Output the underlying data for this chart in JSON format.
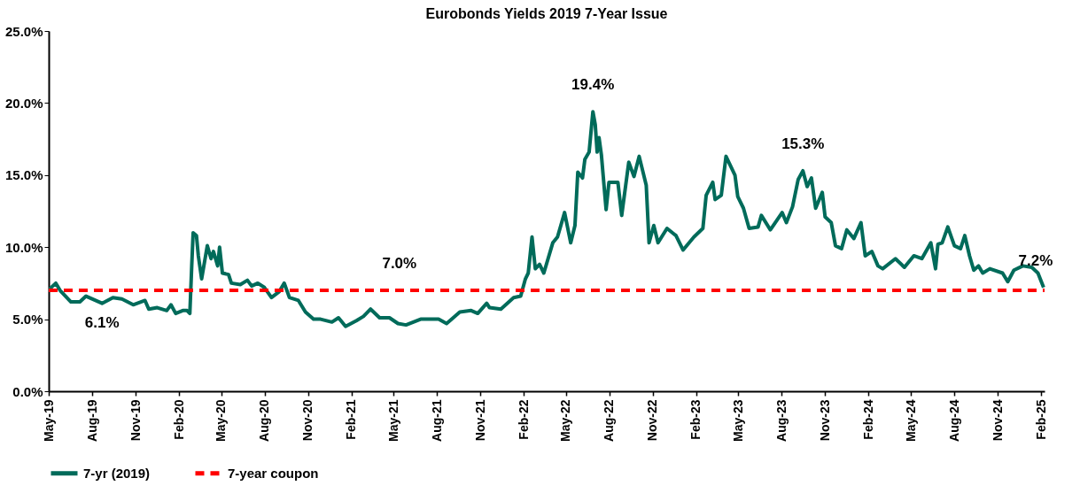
{
  "chart_data": {
    "type": "line",
    "title": "Eurobonds Yields 2019 7-Year Issue",
    "xlim": [
      "2019-05-01",
      "2025-02-08"
    ],
    "xticks": [
      {
        "value": "2019-05-01",
        "label": "May-19"
      },
      {
        "value": "2019-08-01",
        "label": "Aug-19"
      },
      {
        "value": "2019-11-01",
        "label": "Nov-19"
      },
      {
        "value": "2020-02-01",
        "label": "Feb-20"
      },
      {
        "value": "2020-05-01",
        "label": "May-20"
      },
      {
        "value": "2020-08-01",
        "label": "Aug-20"
      },
      {
        "value": "2020-11-01",
        "label": "Nov-20"
      },
      {
        "value": "2021-02-01",
        "label": "Feb-21"
      },
      {
        "value": "2021-05-01",
        "label": "May-21"
      },
      {
        "value": "2021-08-01",
        "label": "Aug-21"
      },
      {
        "value": "2021-11-01",
        "label": "Nov-21"
      },
      {
        "value": "2022-02-01",
        "label": "Feb-22"
      },
      {
        "value": "2022-05-01",
        "label": "May-22"
      },
      {
        "value": "2022-08-01",
        "label": "Aug-22"
      },
      {
        "value": "2022-11-01",
        "label": "Nov-22"
      },
      {
        "value": "2023-02-01",
        "label": "Feb-23"
      },
      {
        "value": "2023-05-01",
        "label": "May-23"
      },
      {
        "value": "2023-08-01",
        "label": "Aug-23"
      },
      {
        "value": "2023-11-01",
        "label": "Nov-23"
      },
      {
        "value": "2024-02-01",
        "label": "Feb-24"
      },
      {
        "value": "2024-05-01",
        "label": "May-24"
      },
      {
        "value": "2024-08-01",
        "label": "Aug-24"
      },
      {
        "value": "2024-11-01",
        "label": "Nov-24"
      },
      {
        "value": "2025-02-01",
        "label": "Feb-25"
      }
    ],
    "ylim": [
      0,
      25
    ],
    "yticks": [
      {
        "value": 0,
        "label": "0.0%"
      },
      {
        "value": 5,
        "label": "5.0%"
      },
      {
        "value": 10,
        "label": "10.0%"
      },
      {
        "value": 15,
        "label": "15.0%"
      },
      {
        "value": 20,
        "label": "20.0%"
      },
      {
        "value": 25,
        "label": "25.0%"
      }
    ],
    "grid": false,
    "legend": "bottom",
    "marker": "none",
    "series": [
      {
        "name": "7-yr (2019)",
        "color": "#006b5a",
        "line_style": "solid",
        "x": [
          "2019-05-03",
          "2019-05-16",
          "2019-05-25",
          "2019-06-17",
          "2019-07-06",
          "2019-07-19",
          "2019-08-22",
          "2019-09-14",
          "2019-10-03",
          "2019-10-27",
          "2019-11-21",
          "2019-11-29",
          "2019-12-17",
          "2020-01-06",
          "2020-01-15",
          "2020-01-25",
          "2020-02-09",
          "2020-02-18",
          "2020-02-24",
          "2020-02-28",
          "2020-03-02",
          "2020-03-09",
          "2020-03-13",
          "2020-03-20",
          "2020-04-01",
          "2020-04-09",
          "2020-04-14",
          "2020-04-23",
          "2020-04-27",
          "2020-05-03",
          "2020-05-16",
          "2020-05-22",
          "2020-06-10",
          "2020-06-25",
          "2020-07-04",
          "2020-07-17",
          "2020-07-31",
          "2020-08-15",
          "2020-08-31",
          "2020-09-11",
          "2020-09-22",
          "2020-10-11",
          "2020-10-26",
          "2020-11-12",
          "2020-11-27",
          "2020-12-21",
          "2021-01-04",
          "2021-01-19",
          "2021-02-11",
          "2021-02-26",
          "2021-03-13",
          "2021-04-01",
          "2021-04-22",
          "2021-05-10",
          "2021-05-27",
          "2021-06-27",
          "2021-08-04",
          "2021-08-21",
          "2021-09-18",
          "2021-10-12",
          "2021-10-26",
          "2021-11-14",
          "2021-11-20",
          "2021-12-14",
          "2022-01-10",
          "2022-01-25",
          "2022-02-04",
          "2022-02-10",
          "2022-02-18",
          "2022-02-25",
          "2022-03-06",
          "2022-03-15",
          "2022-04-03",
          "2022-04-13",
          "2022-04-28",
          "2022-05-11",
          "2022-05-20",
          "2022-05-26",
          "2022-06-05",
          "2022-06-10",
          "2022-06-19",
          "2022-06-27",
          "2022-07-02",
          "2022-07-06",
          "2022-07-10",
          "2022-07-15",
          "2022-07-25",
          "2022-07-31",
          "2022-08-19",
          "2022-08-27",
          "2022-09-11",
          "2022-09-22",
          "2022-10-03",
          "2022-10-18",
          "2022-10-24",
          "2022-11-03",
          "2022-11-12",
          "2022-12-01",
          "2022-12-20",
          "2023-01-04",
          "2023-01-27",
          "2023-02-15",
          "2023-02-22",
          "2023-03-08",
          "2023-03-13",
          "2023-03-26",
          "2023-04-05",
          "2023-04-24",
          "2023-04-30",
          "2023-05-12",
          "2023-05-24",
          "2023-06-12",
          "2023-06-19",
          "2023-07-08",
          "2023-08-02",
          "2023-08-11",
          "2023-08-24",
          "2023-09-05",
          "2023-09-15",
          "2023-09-24",
          "2023-10-03",
          "2023-10-12",
          "2023-10-26",
          "2023-11-01",
          "2023-11-14",
          "2023-11-23",
          "2023-12-06",
          "2023-12-17",
          "2024-01-01",
          "2024-01-16",
          "2024-01-25",
          "2024-02-08",
          "2024-02-21",
          "2024-03-02",
          "2024-03-29",
          "2024-04-17",
          "2024-05-07",
          "2024-05-24",
          "2024-06-12",
          "2024-06-22",
          "2024-06-27",
          "2024-07-06",
          "2024-07-18",
          "2024-08-01",
          "2024-08-14",
          "2024-08-23",
          "2024-09-02",
          "2024-09-11",
          "2024-09-21",
          "2024-09-30",
          "2024-10-15",
          "2024-11-11",
          "2024-11-22",
          "2024-12-05",
          "2024-12-24",
          "2025-01-12",
          "2025-01-25",
          "2025-02-06"
        ],
        "values": [
          7.1,
          7.5,
          7.0,
          6.2,
          6.2,
          6.6,
          6.1,
          6.5,
          6.4,
          6.0,
          6.3,
          5.7,
          5.8,
          5.6,
          6.0,
          5.4,
          5.6,
          5.6,
          5.4,
          8.7,
          11.0,
          10.8,
          9.4,
          7.8,
          10.1,
          9.2,
          9.7,
          8.7,
          10.0,
          8.2,
          8.1,
          7.5,
          7.4,
          7.7,
          7.3,
          7.5,
          7.2,
          6.5,
          6.9,
          7.5,
          6.5,
          6.3,
          5.5,
          5.0,
          5.0,
          4.8,
          5.1,
          4.5,
          4.9,
          5.2,
          5.7,
          5.1,
          5.1,
          4.7,
          4.6,
          5.0,
          5.0,
          4.7,
          5.5,
          5.6,
          5.4,
          6.1,
          5.8,
          5.7,
          6.5,
          6.6,
          7.8,
          8.2,
          10.7,
          8.5,
          8.8,
          8.2,
          10.3,
          10.7,
          12.4,
          10.3,
          11.5,
          15.2,
          14.8,
          16.1,
          16.6,
          19.4,
          18.5,
          16.6,
          17.6,
          16.4,
          12.6,
          14.5,
          14.5,
          12.2,
          15.9,
          14.9,
          16.3,
          14.3,
          10.3,
          11.5,
          10.3,
          11.3,
          10.8,
          9.8,
          10.7,
          11.3,
          13.6,
          14.5,
          13.3,
          13.6,
          16.3,
          15.0,
          13.5,
          12.7,
          11.3,
          11.4,
          12.2,
          11.2,
          12.4,
          11.7,
          12.8,
          14.7,
          15.3,
          14.2,
          14.8,
          12.7,
          13.8,
          12.1,
          11.7,
          10.1,
          9.9,
          11.2,
          10.6,
          11.7,
          9.4,
          9.7,
          8.7,
          8.5,
          9.2,
          8.6,
          9.4,
          9.2,
          10.3,
          8.5,
          10.2,
          10.3,
          11.4,
          10.1,
          9.9,
          10.8,
          9.4,
          8.4,
          8.7,
          8.2,
          8.5,
          8.2,
          7.6,
          8.4,
          8.7,
          8.6,
          8.2,
          7.2
        ]
      },
      {
        "name": "7-year coupon",
        "color": "#ff0000",
        "line_style": "dashed",
        "x": [
          "2019-05-01",
          "2025-02-08"
        ],
        "values": [
          7.0,
          7.0
        ]
      }
    ],
    "annotations": [
      {
        "text": "6.1%",
        "x": "2019-08-22",
        "y": 6.1
      },
      {
        "text": "7.0%",
        "x": "2021-05-13",
        "y": 7.0
      },
      {
        "text": "19.4%",
        "x": "2022-06-27",
        "y": 19.4
      },
      {
        "text": "15.3%",
        "x": "2023-09-15",
        "y": 15.3
      },
      {
        "text": "7.2%",
        "x": "2025-01-20",
        "y": 7.2
      }
    ]
  }
}
